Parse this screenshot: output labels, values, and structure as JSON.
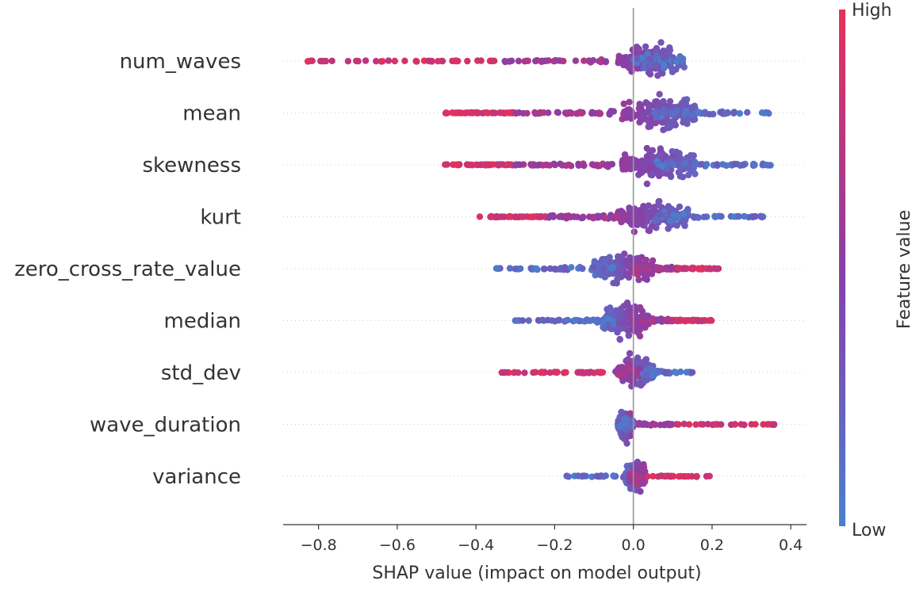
{
  "chart_data": {
    "type": "scatter",
    "subtype": "shap-beeswarm",
    "title": "",
    "xlabel": "SHAP value (impact on model output)",
    "xlim": [
      -0.89,
      0.44
    ],
    "xticks": [
      -0.8,
      -0.6,
      -0.4,
      -0.2,
      0.0,
      0.2,
      0.4
    ],
    "xtick_labels": [
      "−0.8",
      "−0.6",
      "−0.4",
      "−0.2",
      "0.0",
      "0.2",
      "0.4"
    ],
    "zero_line": 0.0,
    "features": [
      {
        "name": "num_waves",
        "dense_range": [
          -0.04,
          0.13
        ],
        "high_range": [
          -0.84,
          -0.35
        ],
        "mid_range": [
          -0.33,
          -0.06
        ],
        "low_range": [
          0.0,
          0.13
        ],
        "n_points": 260
      },
      {
        "name": "mean",
        "dense_range": [
          -0.03,
          0.16
        ],
        "high_range": [
          -0.48,
          -0.3
        ],
        "mid_range": [
          -0.3,
          -0.05
        ],
        "low_range": [
          0.05,
          0.35
        ],
        "n_points": 300
      },
      {
        "name": "skewness",
        "dense_range": [
          -0.03,
          0.16
        ],
        "high_range": [
          -0.48,
          -0.3
        ],
        "mid_range": [
          -0.3,
          -0.05
        ],
        "low_range": [
          0.05,
          0.35
        ],
        "n_points": 300
      },
      {
        "name": "kurt",
        "dense_range": [
          -0.04,
          0.14
        ],
        "high_range": [
          -0.4,
          -0.22
        ],
        "mid_range": [
          -0.22,
          -0.04
        ],
        "low_range": [
          0.05,
          0.33
        ],
        "n_points": 290
      },
      {
        "name": "zero_cross_rate_value",
        "dense_range": [
          -0.1,
          0.05
        ],
        "high_range": [
          0.08,
          0.22
        ],
        "mid_range": [
          0.0,
          0.1
        ],
        "low_range": [
          -0.35,
          -0.05
        ],
        "n_points": 300
      },
      {
        "name": "median",
        "dense_range": [
          -0.08,
          0.04
        ],
        "high_range": [
          0.08,
          0.2
        ],
        "mid_range": [
          0.0,
          0.1
        ],
        "low_range": [
          -0.3,
          -0.05
        ],
        "n_points": 300
      },
      {
        "name": "std_dev",
        "dense_range": [
          -0.04,
          0.05
        ],
        "high_range": [
          -0.34,
          -0.06
        ],
        "mid_range": [
          -0.05,
          0.02
        ],
        "low_range": [
          0.02,
          0.15
        ],
        "n_points": 260
      },
      {
        "name": "wave_duration",
        "dense_range": [
          -0.04,
          0.0
        ],
        "high_range": [
          0.08,
          0.37
        ],
        "mid_range": [
          0.0,
          0.1
        ],
        "low_range": [
          -0.04,
          0.0
        ],
        "n_points": 200
      },
      {
        "name": "variance",
        "dense_range": [
          -0.02,
          0.03
        ],
        "high_range": [
          0.0,
          0.2
        ],
        "mid_range": [
          -0.01,
          0.02
        ],
        "low_range": [
          -0.17,
          -0.01
        ],
        "n_points": 170
      }
    ],
    "colorbar": {
      "title": "Feature value",
      "high_label": "High",
      "low_label": "Low",
      "high_color": "#ff0052",
      "low_color": "#008bfb"
    },
    "colors": {
      "high": "#e8305a",
      "mid": "#8a3ea6",
      "low": "#4a7fd0",
      "axis": "#333333",
      "zero_line": "#999999"
    }
  }
}
